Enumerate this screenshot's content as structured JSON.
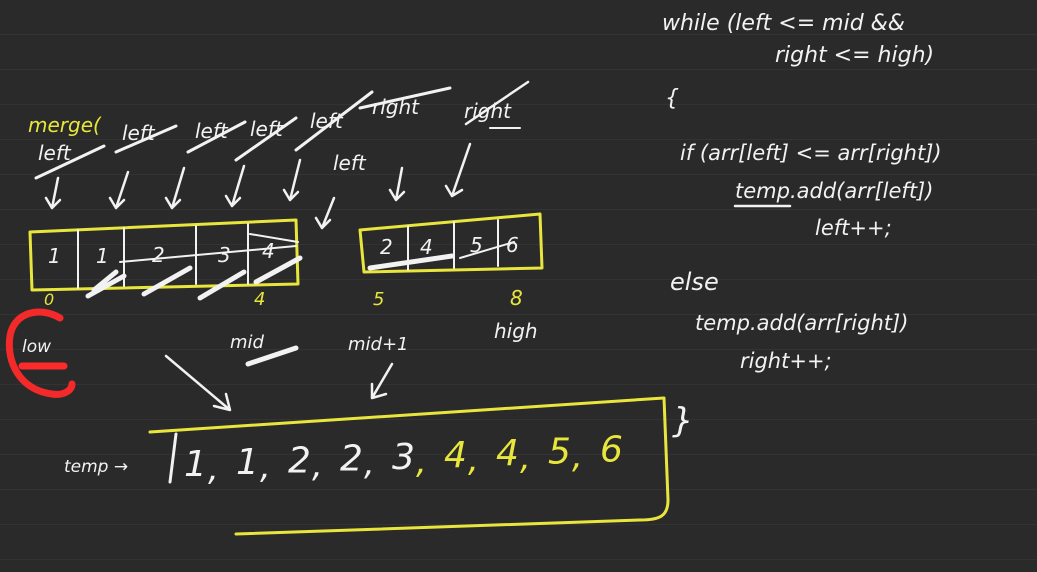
{
  "code": {
    "lines": [
      "while (left <= mid &&",
      "right <= high)",
      "{",
      "if (arr[left] <= arr[right])",
      "temp.add(arr[left])",
      "left++;",
      "else",
      "temp.add(arr[right])",
      "right++;",
      "}"
    ]
  },
  "merge": {
    "label": "merge(",
    "pointer_words": [
      "left",
      "left",
      "left",
      "left",
      "left",
      "left",
      "right",
      "right"
    ]
  },
  "left_array": {
    "values": [
      "1",
      "1",
      "2",
      "3",
      "4"
    ],
    "start_index": "0",
    "end_index": "4"
  },
  "right_array": {
    "values": [
      "2",
      "4",
      "5",
      "6"
    ],
    "start_index": "5",
    "end_index": "8"
  },
  "labels": {
    "low": "low",
    "mid": "mid",
    "mid_plus_one": "mid+1",
    "high": "high"
  },
  "temp": {
    "label": "temp →",
    "values": [
      "1",
      "1",
      "2",
      "2",
      "3",
      "4",
      "4",
      "5",
      "6"
    ],
    "highlight_from_index": 5
  },
  "colors": {
    "board": "#2a2a2a",
    "ink": "#f2f2f2",
    "highlight": "#e8e63c",
    "circle": "#ff2a2a"
  }
}
